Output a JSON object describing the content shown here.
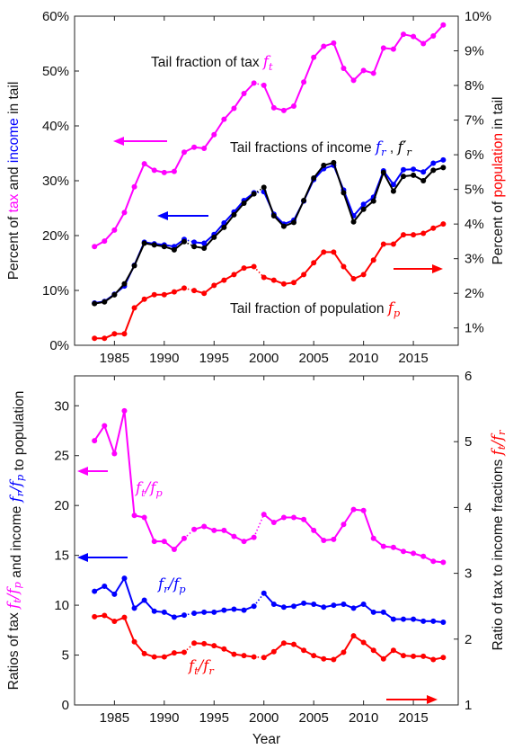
{
  "chart_data": [
    {
      "type": "line",
      "panel": "top",
      "xlabel": "",
      "ylabel_left": {
        "parts": [
          "Percent of ",
          "tax",
          " and ",
          "income",
          " in tail"
        ]
      },
      "ylabel_right": {
        "parts": [
          "Percent of ",
          "population",
          " in tail"
        ]
      },
      "xlim": [
        1981,
        2019.5
      ],
      "ylim_left": [
        0,
        60
      ],
      "ylim_right": [
        0.5,
        10
      ],
      "x_ticks": [
        1985,
        1990,
        1995,
        2000,
        2005,
        2010,
        2015
      ],
      "y_ticks_left": [
        "0%",
        "10%",
        "20%",
        "30%",
        "40%",
        "50%",
        "60%"
      ],
      "y_ticks_right": [
        "1%",
        "2%",
        "3%",
        "4%",
        "5%",
        "6%",
        "7%",
        "8%",
        "9%",
        "10%"
      ],
      "grid": false,
      "annotations": {
        "tax": {
          "text": "Tail fraction of tax ",
          "math": "f",
          "sub": "t"
        },
        "income": {
          "text": "Tail fractions of income ",
          "math1": "f",
          "sub1": "r",
          "sep": " , ",
          "math2": "f′",
          "sub2": "r"
        },
        "pop": {
          "text": "Tail fraction of population ",
          "math": "f",
          "sub": "p"
        }
      },
      "series": [
        {
          "key": "tax",
          "color": "#ff00ff",
          "axis": "left",
          "x": [
            1983,
            1984,
            1985,
            1986,
            1987,
            1988,
            1989,
            1990,
            1991,
            1992,
            1993,
            1994,
            1995,
            1996,
            1997,
            1998,
            1999,
            2000,
            2001,
            2002,
            2003,
            2004,
            2005,
            2006,
            2007,
            2008,
            2009,
            2010,
            2011,
            2012,
            2013,
            2014,
            2015,
            2016,
            2017,
            2018
          ],
          "values": [
            18.0,
            19.0,
            21.0,
            24.2,
            28.9,
            33.1,
            31.9,
            31.5,
            31.7,
            35.2,
            36.1,
            35.9,
            38.4,
            41.2,
            43.2,
            45.9,
            47.8,
            47.4,
            43.3,
            42.8,
            43.6,
            48.0,
            52.5,
            54.5,
            55.1,
            50.5,
            48.3,
            50.1,
            49.6,
            54.2,
            54.0,
            56.7,
            56.3,
            55.0,
            56.4,
            58.4
          ],
          "dotted_segments": [
            [
              1999,
              2000
            ]
          ]
        },
        {
          "key": "income_blue",
          "color": "#0000ff",
          "axis": "left",
          "x": [
            1983,
            1984,
            1985,
            1986,
            1987,
            1988,
            1989,
            1990,
            1991,
            1992,
            1993,
            1994,
            1995,
            1996,
            1997,
            1998,
            1999,
            2000,
            2001,
            2002,
            2003,
            2004,
            2005,
            2006,
            2007,
            2008,
            2009,
            2010,
            2011,
            2012,
            2013,
            2014,
            2015,
            2016,
            2017,
            2018
          ],
          "values": [
            7.7,
            8.0,
            9.3,
            10.8,
            14.6,
            18.8,
            18.5,
            18.3,
            18.0,
            19.3,
            18.8,
            18.6,
            20.2,
            22.3,
            24.3,
            26.4,
            27.8,
            28.0,
            23.9,
            22.1,
            22.8,
            26.3,
            30.2,
            32.2,
            32.8,
            28.3,
            23.6,
            25.7,
            27.0,
            31.8,
            29.3,
            32.0,
            32.1,
            31.6,
            33.2,
            33.8
          ],
          "dotted_segments": [
            [
              1992,
              1993
            ],
            [
              1999,
              2000
            ]
          ]
        },
        {
          "key": "income_black",
          "color": "#000000",
          "axis": "left",
          "x": [
            1983,
            1984,
            1985,
            1986,
            1987,
            1988,
            1989,
            1990,
            1991,
            1992,
            1993,
            1994,
            1995,
            1996,
            1997,
            1998,
            1999,
            2000,
            2001,
            2002,
            2003,
            2004,
            2005,
            2006,
            2007,
            2008,
            2009,
            2010,
            2011,
            2012,
            2013,
            2014,
            2015,
            2016,
            2017,
            2018
          ],
          "values": [
            7.6,
            7.9,
            9.2,
            11.2,
            14.5,
            18.6,
            18.3,
            18.0,
            17.4,
            18.9,
            18.0,
            17.7,
            19.7,
            21.5,
            23.8,
            25.9,
            27.6,
            28.8,
            23.6,
            21.7,
            22.4,
            26.4,
            30.5,
            32.8,
            33.3,
            27.8,
            22.5,
            24.8,
            26.3,
            31.5,
            28.1,
            30.8,
            31.0,
            30.0,
            31.9,
            32.4
          ],
          "dotted_segments": [
            [
              1992,
              1993
            ],
            [
              1999,
              2000
            ]
          ]
        },
        {
          "key": "pop",
          "color": "#ff0000",
          "axis": "right",
          "x": [
            1983,
            1984,
            1985,
            1986,
            1987,
            1988,
            1989,
            1990,
            1991,
            1992,
            1993,
            1994,
            1995,
            1996,
            1997,
            1998,
            1999,
            2000,
            2001,
            2002,
            2003,
            2004,
            2005,
            2006,
            2007,
            2008,
            2009,
            2010,
            2011,
            2012,
            2013,
            2014,
            2015,
            2016,
            2017,
            2018
          ],
          "values": [
            0.7,
            0.7,
            0.83,
            0.83,
            1.58,
            1.83,
            1.96,
            1.96,
            2.04,
            2.15,
            2.08,
            2.0,
            2.23,
            2.38,
            2.54,
            2.73,
            2.77,
            2.46,
            2.38,
            2.27,
            2.31,
            2.54,
            2.88,
            3.19,
            3.19,
            2.77,
            2.42,
            2.54,
            2.96,
            3.42,
            3.42,
            3.69,
            3.69,
            3.73,
            3.88,
            4.0
          ],
          "dotted_segments": [
            [
              1992,
              1993
            ],
            [
              1999,
              2000
            ]
          ]
        }
      ],
      "arrows": [
        {
          "series": "tax",
          "direction": "left",
          "color": "#ff00ff"
        },
        {
          "series": "income_blue",
          "direction": "left",
          "color": "#0000ff"
        },
        {
          "series": "pop",
          "direction": "right",
          "color": "#ff0000"
        }
      ]
    },
    {
      "type": "line",
      "panel": "bottom",
      "xlabel": "Year",
      "ylabel_left": {
        "parts": [
          "Ratios of tax ",
          "f_t/f_p",
          " and income ",
          "f_r/f_p",
          " to population"
        ]
      },
      "ylabel_right": {
        "parts": [
          "Ratio of tax to income fractions ",
          "f_t/f_r"
        ]
      },
      "xlim": [
        1981,
        2019.5
      ],
      "ylim_left": [
        0,
        33
      ],
      "ylim_right": [
        1,
        6
      ],
      "x_ticks": [
        1985,
        1990,
        1995,
        2000,
        2005,
        2010,
        2015
      ],
      "y_ticks_left": [
        "0",
        "5",
        "10",
        "15",
        "20",
        "25",
        "30"
      ],
      "y_ticks_right": [
        "1",
        "2",
        "3",
        "4",
        "5",
        "6"
      ],
      "grid": false,
      "annotations": {
        "ft_fp": {
          "num": "f",
          "nsub": "t",
          "den": "f",
          "dsub": "p"
        },
        "fr_fp": {
          "num": "f",
          "nsub": "r",
          "den": "f",
          "dsub": "p"
        },
        "ft_fr": {
          "num": "f",
          "nsub": "t",
          "den": "f",
          "dsub": "r"
        }
      },
      "series": [
        {
          "key": "ft_fp",
          "color": "#ff00ff",
          "axis": "left",
          "x": [
            1983,
            1984,
            1985,
            1986,
            1987,
            1988,
            1989,
            1990,
            1991,
            1992,
            1993,
            1994,
            1995,
            1996,
            1997,
            1998,
            1999,
            2000,
            2001,
            2002,
            2003,
            2004,
            2005,
            2006,
            2007,
            2008,
            2009,
            2010,
            2011,
            2012,
            2013,
            2014,
            2015,
            2016,
            2017,
            2018
          ],
          "values": [
            26.5,
            28.0,
            25.2,
            29.5,
            19.0,
            18.8,
            16.4,
            16.4,
            15.6,
            16.7,
            17.6,
            17.9,
            17.5,
            17.5,
            16.9,
            16.4,
            16.8,
            19.1,
            18.3,
            18.8,
            18.8,
            18.6,
            17.5,
            16.5,
            16.6,
            18.1,
            19.6,
            19.5,
            16.7,
            15.9,
            15.8,
            15.4,
            15.2,
            14.9,
            14.4,
            14.3
          ],
          "dotted_segments": [
            [
              1992,
              1993
            ],
            [
              1999,
              2000
            ]
          ]
        },
        {
          "key": "fr_fp",
          "color": "#0000ff",
          "axis": "left",
          "x": [
            1983,
            1984,
            1985,
            1986,
            1987,
            1988,
            1989,
            1990,
            1991,
            1992,
            1993,
            1994,
            1995,
            1996,
            1997,
            1998,
            1999,
            2000,
            2001,
            2002,
            2003,
            2004,
            2005,
            2006,
            2007,
            2008,
            2009,
            2010,
            2011,
            2012,
            2013,
            2014,
            2015,
            2016,
            2017,
            2018
          ],
          "values": [
            11.4,
            11.9,
            11.1,
            12.7,
            9.7,
            10.5,
            9.4,
            9.3,
            8.8,
            9.0,
            9.2,
            9.3,
            9.3,
            9.5,
            9.6,
            9.5,
            9.9,
            11.2,
            10.1,
            9.8,
            9.9,
            10.2,
            10.1,
            9.8,
            10.0,
            10.1,
            9.7,
            10.1,
            9.3,
            9.3,
            8.6,
            8.6,
            8.6,
            8.4,
            8.4,
            8.3
          ],
          "dotted_segments": [
            [
              1992,
              1993
            ],
            [
              1999,
              2000
            ]
          ]
        },
        {
          "key": "ft_fr",
          "color": "#ff0000",
          "axis": "right",
          "x": [
            1983,
            1984,
            1985,
            1986,
            1987,
            1988,
            1989,
            1990,
            1991,
            1992,
            1993,
            1994,
            1995,
            1996,
            1997,
            1998,
            1999,
            2000,
            2001,
            2002,
            2003,
            2004,
            2005,
            2006,
            2007,
            2008,
            2009,
            2010,
            2011,
            2012,
            2013,
            2014,
            2015,
            2016,
            2017,
            2018
          ],
          "values": [
            2.34,
            2.36,
            2.27,
            2.33,
            1.96,
            1.78,
            1.73,
            1.73,
            1.79,
            1.8,
            1.94,
            1.93,
            1.9,
            1.85,
            1.77,
            1.75,
            1.73,
            1.72,
            1.81,
            1.94,
            1.92,
            1.83,
            1.75,
            1.7,
            1.69,
            1.8,
            2.05,
            1.95,
            1.83,
            1.7,
            1.83,
            1.75,
            1.74,
            1.74,
            1.69,
            1.72
          ],
          "dotted_segments": [
            [
              1992,
              1993
            ],
            [
              1999,
              2000
            ]
          ]
        }
      ],
      "arrows": [
        {
          "series": "ft_fp",
          "direction": "left",
          "color": "#ff00ff"
        },
        {
          "series": "fr_fp",
          "direction": "left",
          "color": "#0000ff"
        },
        {
          "series": "ft_fr",
          "direction": "right",
          "color": "#ff0000"
        }
      ]
    }
  ]
}
